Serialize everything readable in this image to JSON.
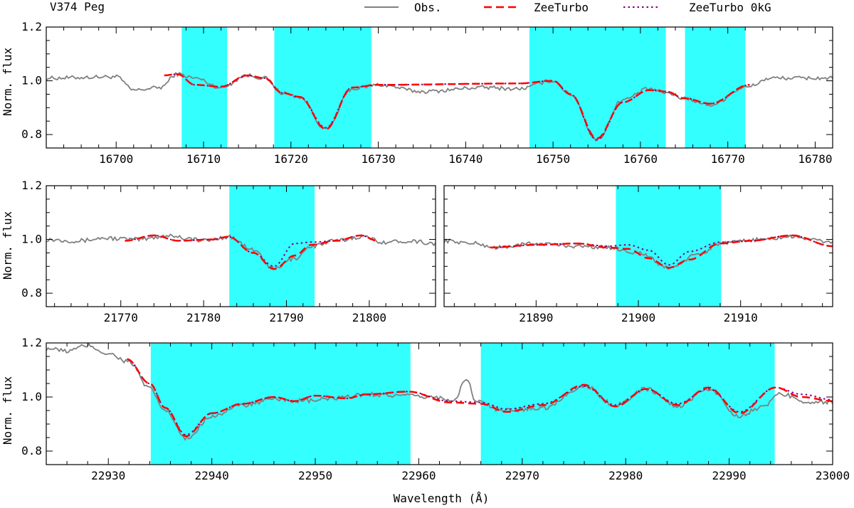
{
  "figure": {
    "star_label": "V374 Peg",
    "xlabel": "Wavelength (Å)",
    "ylabel": "Norm. flux",
    "legend": [
      {
        "label": "Obs.",
        "color": "#808080",
        "style": "solid"
      },
      {
        "label": "ZeeTurbo",
        "color": "#ff0000",
        "style": "dashed"
      },
      {
        "label": "ZeeTurbo 0kG",
        "color": "#800080",
        "style": "dotted"
      }
    ],
    "colors": {
      "observed": "#808080",
      "model": "#ff0000",
      "model_0kG": "#800080",
      "window": "#33ffff"
    }
  },
  "chart_data": [
    {
      "type": "line",
      "id": "panel-16700",
      "xlim": [
        16692,
        16782
      ],
      "ylim": [
        0.75,
        1.2
      ],
      "xticks": [
        16700,
        16710,
        16720,
        16730,
        16740,
        16750,
        16760,
        16770,
        16780
      ],
      "yticks": [
        0.8,
        1.0,
        1.2
      ],
      "windows": [
        [
          16707.5,
          16712.7
        ],
        [
          16718.1,
          16729.2
        ],
        [
          16747.3,
          16762.9
        ],
        [
          16765.1,
          16772.0
        ]
      ],
      "model_range": [
        16705.5,
        16772.5
      ],
      "obs_noise": 0.007,
      "obs": [
        [
          16692,
          1.01
        ],
        [
          16700,
          1.015
        ],
        [
          16702,
          0.965
        ],
        [
          16705,
          0.975
        ],
        [
          16707,
          1.025
        ],
        [
          16709,
          1.01
        ],
        [
          16712,
          0.975
        ],
        [
          16715,
          1.02
        ],
        [
          16717,
          1.01
        ],
        [
          16719,
          0.955
        ],
        [
          16721,
          0.94
        ],
        [
          16724,
          0.82
        ],
        [
          16727,
          0.97
        ],
        [
          16730,
          0.985
        ],
        [
          16735,
          0.96
        ],
        [
          16742,
          0.975
        ],
        [
          16746,
          0.97
        ],
        [
          16750,
          1.0
        ],
        [
          16752,
          0.95
        ],
        [
          16755,
          0.78
        ],
        [
          16758,
          0.93
        ],
        [
          16761,
          0.97
        ],
        [
          16763,
          0.955
        ],
        [
          16765,
          0.935
        ],
        [
          16768,
          0.91
        ],
        [
          16772,
          0.975
        ],
        [
          16775,
          1.01
        ],
        [
          16782,
          1.01
        ]
      ],
      "model": [
        [
          16705.5,
          1.02
        ],
        [
          16707,
          1.025
        ],
        [
          16709,
          0.985
        ],
        [
          16712,
          0.978
        ],
        [
          16715,
          1.02
        ],
        [
          16717,
          1.01
        ],
        [
          16719,
          0.955
        ],
        [
          16721,
          0.94
        ],
        [
          16724,
          0.82
        ],
        [
          16727,
          0.975
        ],
        [
          16730,
          0.985
        ],
        [
          16746,
          0.99
        ],
        [
          16750,
          1.0
        ],
        [
          16752,
          0.95
        ],
        [
          16755,
          0.785
        ],
        [
          16758,
          0.92
        ],
        [
          16761,
          0.965
        ],
        [
          16763,
          0.96
        ],
        [
          16765,
          0.935
        ],
        [
          16768,
          0.915
        ],
        [
          16772.5,
          0.985
        ]
      ],
      "model0": [
        [
          16705.5,
          1.02
        ],
        [
          16707,
          1.025
        ],
        [
          16709,
          0.985
        ],
        [
          16712,
          0.978
        ],
        [
          16715,
          1.02
        ],
        [
          16717,
          1.01
        ],
        [
          16719,
          0.955
        ],
        [
          16721,
          0.94
        ],
        [
          16724,
          0.825
        ],
        [
          16727,
          0.975
        ],
        [
          16730,
          0.985
        ],
        [
          16746,
          0.99
        ],
        [
          16750,
          1.0
        ],
        [
          16752,
          0.95
        ],
        [
          16755,
          0.78
        ],
        [
          16758,
          0.92
        ],
        [
          16761,
          0.965
        ],
        [
          16763,
          0.96
        ],
        [
          16765,
          0.935
        ],
        [
          16768,
          0.915
        ],
        [
          16772.5,
          0.985
        ]
      ]
    },
    {
      "type": "line",
      "id": "panel-21780",
      "xlim": [
        21761,
        21808
      ],
      "ylim": [
        0.75,
        1.2
      ],
      "xticks": [
        21770,
        21780,
        21790,
        21800
      ],
      "yticks": [
        0.8,
        1.0,
        1.2
      ],
      "windows": [
        [
          21783.1,
          21793.4
        ]
      ],
      "model_range": [
        21770.5,
        21801
      ],
      "obs_noise": 0.008,
      "obs": [
        [
          21761,
          1.0
        ],
        [
          21765,
          0.995
        ],
        [
          21768,
          1.005
        ],
        [
          21772,
          1.0
        ],
        [
          21776,
          1.015
        ],
        [
          21778,
          1.005
        ],
        [
          21780,
          0.995
        ],
        [
          21783,
          1.01
        ],
        [
          21786,
          0.96
        ],
        [
          21788.5,
          0.89
        ],
        [
          21791,
          0.93
        ],
        [
          21793,
          0.975
        ],
        [
          21796,
          0.995
        ],
        [
          21799,
          1.01
        ],
        [
          21802,
          0.99
        ],
        [
          21805,
          0.995
        ],
        [
          21808,
          0.985
        ]
      ],
      "model": [
        [
          21770.5,
          0.995
        ],
        [
          21774,
          1.015
        ],
        [
          21777,
          0.995
        ],
        [
          21781,
          1.0
        ],
        [
          21783,
          1.01
        ],
        [
          21786,
          0.95
        ],
        [
          21788.5,
          0.89
        ],
        [
          21791,
          0.94
        ],
        [
          21793,
          0.98
        ],
        [
          21796,
          0.995
        ],
        [
          21799,
          1.015
        ],
        [
          21801,
          0.995
        ]
      ],
      "model0": [
        [
          21770.5,
          0.995
        ],
        [
          21774,
          1.015
        ],
        [
          21777,
          0.995
        ],
        [
          21781,
          1.0
        ],
        [
          21783,
          1.01
        ],
        [
          21786,
          0.95
        ],
        [
          21788.5,
          0.9
        ],
        [
          21791,
          0.985
        ],
        [
          21793,
          0.99
        ],
        [
          21796,
          0.995
        ],
        [
          21799,
          1.015
        ],
        [
          21801,
          0.995
        ]
      ]
    },
    {
      "type": "line",
      "id": "panel-21900",
      "xlim": [
        21881,
        21919
      ],
      "ylim": [
        0.75,
        1.2
      ],
      "xticks": [
        21890,
        21900,
        21910
      ],
      "yticks": [
        0.8,
        1.0,
        1.2
      ],
      "windows": [
        [
          21897.8,
          21908.1
        ]
      ],
      "model_range": [
        21885.5,
        21919
      ],
      "obs_noise": 0.007,
      "obs": [
        [
          21881,
          0.995
        ],
        [
          21884,
          0.985
        ],
        [
          21886,
          0.97
        ],
        [
          21890,
          0.985
        ],
        [
          21894,
          0.975
        ],
        [
          21897,
          0.97
        ],
        [
          21900,
          0.95
        ],
        [
          21903,
          0.895
        ],
        [
          21906,
          0.945
        ],
        [
          21908,
          0.985
        ],
        [
          21912,
          1.0
        ],
        [
          21915,
          1.01
        ],
        [
          21919,
          0.99
        ]
      ],
      "model": [
        [
          21885.5,
          0.97
        ],
        [
          21890,
          0.98
        ],
        [
          21894,
          0.985
        ],
        [
          21897,
          0.97
        ],
        [
          21899,
          0.965
        ],
        [
          21901,
          0.93
        ],
        [
          21903,
          0.895
        ],
        [
          21905,
          0.925
        ],
        [
          21908,
          0.985
        ],
        [
          21911,
          0.995
        ],
        [
          21915,
          1.015
        ],
        [
          21919,
          0.975
        ]
      ],
      "model0": [
        [
          21885.5,
          0.97
        ],
        [
          21890,
          0.98
        ],
        [
          21894,
          0.985
        ],
        [
          21897,
          0.975
        ],
        [
          21899,
          0.98
        ],
        [
          21901,
          0.96
        ],
        [
          21903,
          0.905
        ],
        [
          21905,
          0.955
        ],
        [
          21908,
          0.99
        ],
        [
          21911,
          0.995
        ],
        [
          21915,
          1.015
        ],
        [
          21919,
          0.975
        ]
      ]
    },
    {
      "type": "line",
      "id": "panel-22960",
      "xlim": [
        22924,
        23000
      ],
      "ylim": [
        0.75,
        1.2
      ],
      "xticks": [
        22930,
        22940,
        22950,
        22960,
        22970,
        22980,
        22990,
        23000
      ],
      "yticks": [
        0.8,
        1.0,
        1.2
      ],
      "windows": [
        [
          22934.1,
          22959.2
        ],
        [
          22966.0,
          22994.4
        ]
      ],
      "model_range": [
        22931.8,
        23000
      ],
      "obs_noise": 0.008,
      "obs": [
        [
          22924,
          1.18
        ],
        [
          22926,
          1.17
        ],
        [
          22928,
          1.19
        ],
        [
          22930,
          1.16
        ],
        [
          22932,
          1.13
        ],
        [
          22934,
          1.03
        ],
        [
          22935.5,
          0.95
        ],
        [
          22937.5,
          0.845
        ],
        [
          22940,
          0.93
        ],
        [
          22943,
          0.97
        ],
        [
          22946,
          0.99
        ],
        [
          22949,
          0.985
        ],
        [
          22952,
          0.995
        ],
        [
          22955,
          1.01
        ],
        [
          22958,
          1.005
        ],
        [
          22961,
          1.0
        ],
        [
          22963.5,
          0.99
        ],
        [
          22964.6,
          1.07
        ],
        [
          22965.5,
          0.985
        ],
        [
          22968,
          0.95
        ],
        [
          22972,
          0.96
        ],
        [
          22976,
          1.04
        ],
        [
          22979,
          0.97
        ],
        [
          22982,
          1.03
        ],
        [
          22985,
          0.965
        ],
        [
          22988,
          1.03
        ],
        [
          22991,
          0.93
        ],
        [
          22993,
          0.96
        ],
        [
          22995,
          1.01
        ],
        [
          22998,
          0.98
        ],
        [
          23000,
          0.98
        ]
      ],
      "model": [
        [
          22931.8,
          1.14
        ],
        [
          22934,
          1.05
        ],
        [
          22935.5,
          0.96
        ],
        [
          22937.5,
          0.855
        ],
        [
          22940,
          0.94
        ],
        [
          22943,
          0.975
        ],
        [
          22946,
          1.0
        ],
        [
          22948,
          0.985
        ],
        [
          22950,
          1.005
        ],
        [
          22953,
          0.995
        ],
        [
          22955,
          1.01
        ],
        [
          22959,
          1.02
        ],
        [
          22963,
          0.98
        ],
        [
          22966,
          0.975
        ],
        [
          22968.5,
          0.945
        ],
        [
          22972,
          0.97
        ],
        [
          22976,
          1.045
        ],
        [
          22979,
          0.965
        ],
        [
          22982,
          1.03
        ],
        [
          22985,
          0.97
        ],
        [
          22988,
          1.035
        ],
        [
          22991,
          0.94
        ],
        [
          22994.5,
          1.035
        ],
        [
          22997,
          1.0
        ],
        [
          23000,
          0.985
        ]
      ],
      "model0": [
        [
          22931.8,
          1.14
        ],
        [
          22934,
          1.05
        ],
        [
          22935.5,
          0.96
        ],
        [
          22937.5,
          0.86
        ],
        [
          22940,
          0.94
        ],
        [
          22943,
          0.975
        ],
        [
          22946,
          1.0
        ],
        [
          22948,
          0.985
        ],
        [
          22950,
          1.005
        ],
        [
          22953,
          0.995
        ],
        [
          22955,
          1.01
        ],
        [
          22959,
          1.02
        ],
        [
          22963,
          0.985
        ],
        [
          22966,
          0.98
        ],
        [
          22968.5,
          0.955
        ],
        [
          22972,
          0.975
        ],
        [
          22976,
          1.04
        ],
        [
          22979,
          0.97
        ],
        [
          22982,
          1.03
        ],
        [
          22985,
          0.975
        ],
        [
          22988,
          1.03
        ],
        [
          22991,
          0.945
        ],
        [
          22994.5,
          1.035
        ],
        [
          22997,
          1.01
        ],
        [
          23000,
          0.99
        ]
      ]
    }
  ]
}
